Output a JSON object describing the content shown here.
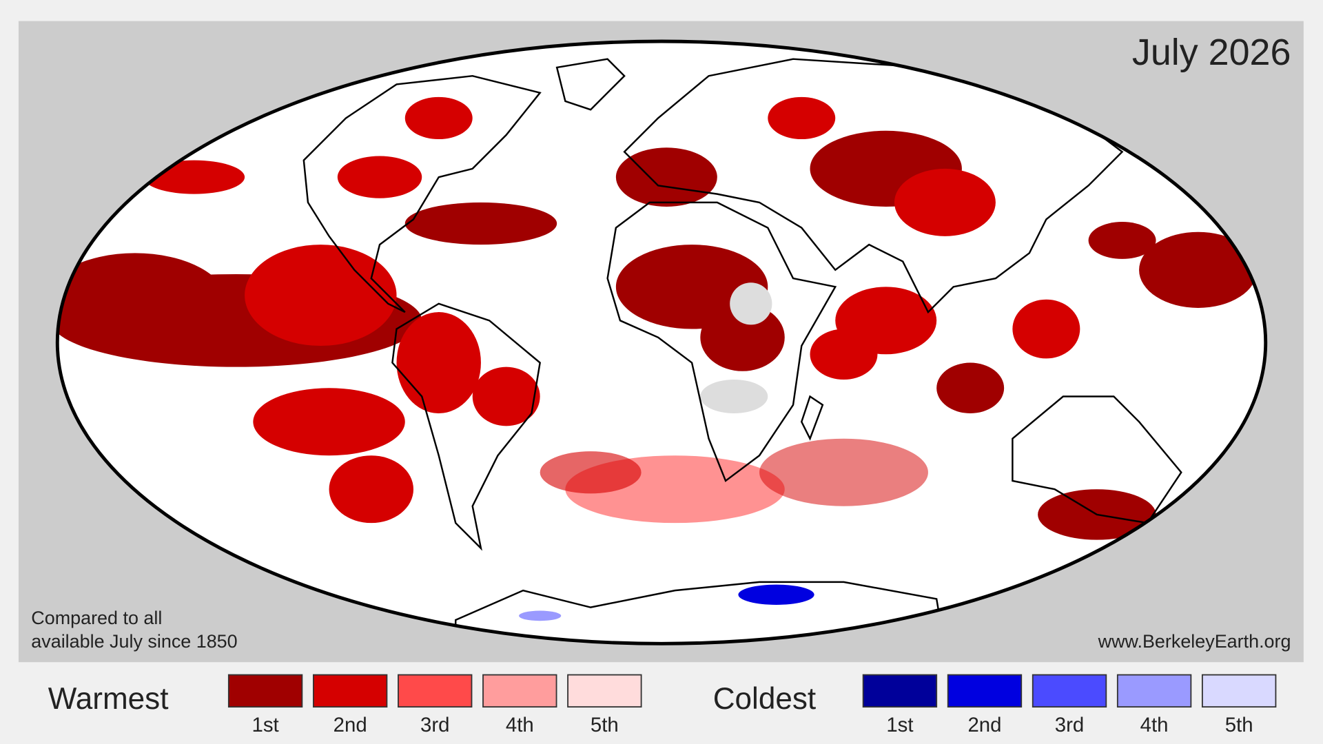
{
  "title": "July 2026",
  "note": [
    "Compared to all",
    "available July since 1850"
  ],
  "source": "www.BerkeleyEarth.org",
  "legend": {
    "warmest": {
      "label": "Warmest",
      "ranks": [
        {
          "label": "1st",
          "color": "#a00000"
        },
        {
          "label": "2nd",
          "color": "#d50000"
        },
        {
          "label": "3rd",
          "color": "#ff4a4a"
        },
        {
          "label": "4th",
          "color": "#ff9d9d"
        },
        {
          "label": "5th",
          "color": "#ffdcdc"
        }
      ]
    },
    "coldest": {
      "label": "Coldest",
      "ranks": [
        {
          "label": "1st",
          "color": "#00009a"
        },
        {
          "label": "2nd",
          "color": "#0000e0"
        },
        {
          "label": "3rd",
          "color": "#4b4bff"
        },
        {
          "label": "4th",
          "color": "#9a9aff"
        },
        {
          "label": "5th",
          "color": "#d9d9ff"
        }
      ]
    }
  }
}
